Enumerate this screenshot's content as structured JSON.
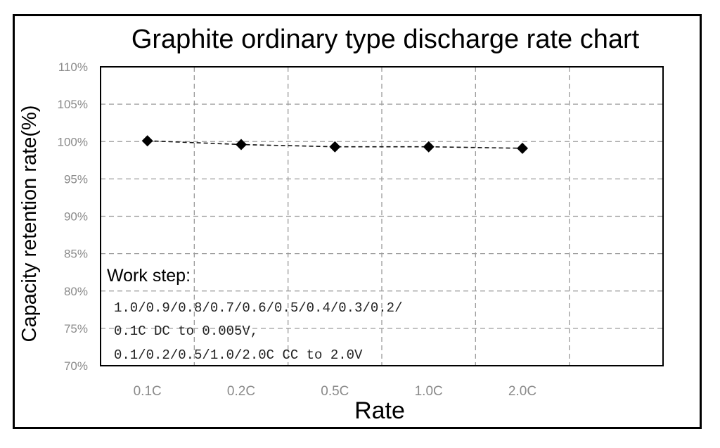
{
  "chart_data": {
    "type": "line",
    "title": "Graphite ordinary type discharge rate chart",
    "xlabel": "Rate",
    "ylabel": "Capacity retention rate(%)",
    "categories": [
      "0.1C",
      "0.2C",
      "0.5C",
      "1.0C",
      "2.0C"
    ],
    "series": [
      {
        "values": [
          100.1,
          99.6,
          99.3,
          99.3,
          99.1
        ]
      }
    ],
    "ylim": [
      70,
      110
    ],
    "yticks": [
      "70%",
      "75%",
      "80%",
      "85%",
      "90%",
      "95%",
      "100%",
      "105%",
      "110%"
    ],
    "grid": true,
    "marker": "diamond",
    "line_style": "dashed",
    "annotation": {
      "heading": "Work step:",
      "lines": [
        "1.0/0.9/0.8/0.7/0.6/0.5/0.4/0.3/0.2/",
        "0.1C DC to 0.005V,",
        "0.1/0.2/0.5/1.0/2.0C CC to 2.0V"
      ]
    }
  }
}
